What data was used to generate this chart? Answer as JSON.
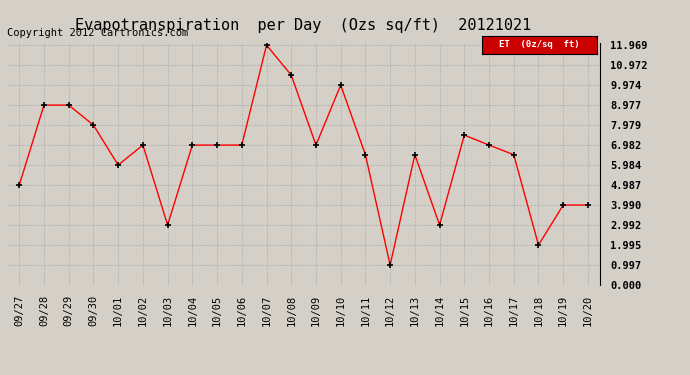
{
  "title": "Evapotranspiration  per Day  (Ozs sq/ft)  20121021",
  "copyright": "Copyright 2012 Cartronics.com",
  "legend_label": "ET  (0z/sq  ft)",
  "x_labels": [
    "09/27",
    "09/28",
    "09/29",
    "09/30",
    "10/01",
    "10/02",
    "10/03",
    "10/04",
    "10/05",
    "10/06",
    "10/07",
    "10/08",
    "10/09",
    "10/10",
    "10/11",
    "10/12",
    "10/13",
    "10/14",
    "10/15",
    "10/16",
    "10/17",
    "10/18",
    "10/19",
    "10/20"
  ],
  "y_values": [
    4.987,
    8.977,
    8.977,
    7.979,
    5.984,
    6.982,
    2.992,
    6.982,
    6.982,
    6.982,
    11.969,
    10.472,
    6.982,
    9.974,
    6.5,
    0.997,
    6.5,
    2.992,
    7.48,
    6.982,
    6.5,
    1.995,
    3.99,
    3.99
  ],
  "y_ticks": [
    0.0,
    0.997,
    1.995,
    2.992,
    3.99,
    4.987,
    5.984,
    6.982,
    7.979,
    8.977,
    9.974,
    10.972,
    11.969
  ],
  "y_min": 0.0,
  "y_max": 11.969,
  "line_color": "red",
  "marker_color": "black",
  "background_color": "#d4d0c8",
  "plot_bg_color": "#d4d0c8",
  "grid_color": "#aaaaaa",
  "legend_bg": "#cc0000",
  "legend_text_color": "white",
  "title_fontsize": 11,
  "tick_fontsize": 7.5,
  "copyright_fontsize": 7.5
}
